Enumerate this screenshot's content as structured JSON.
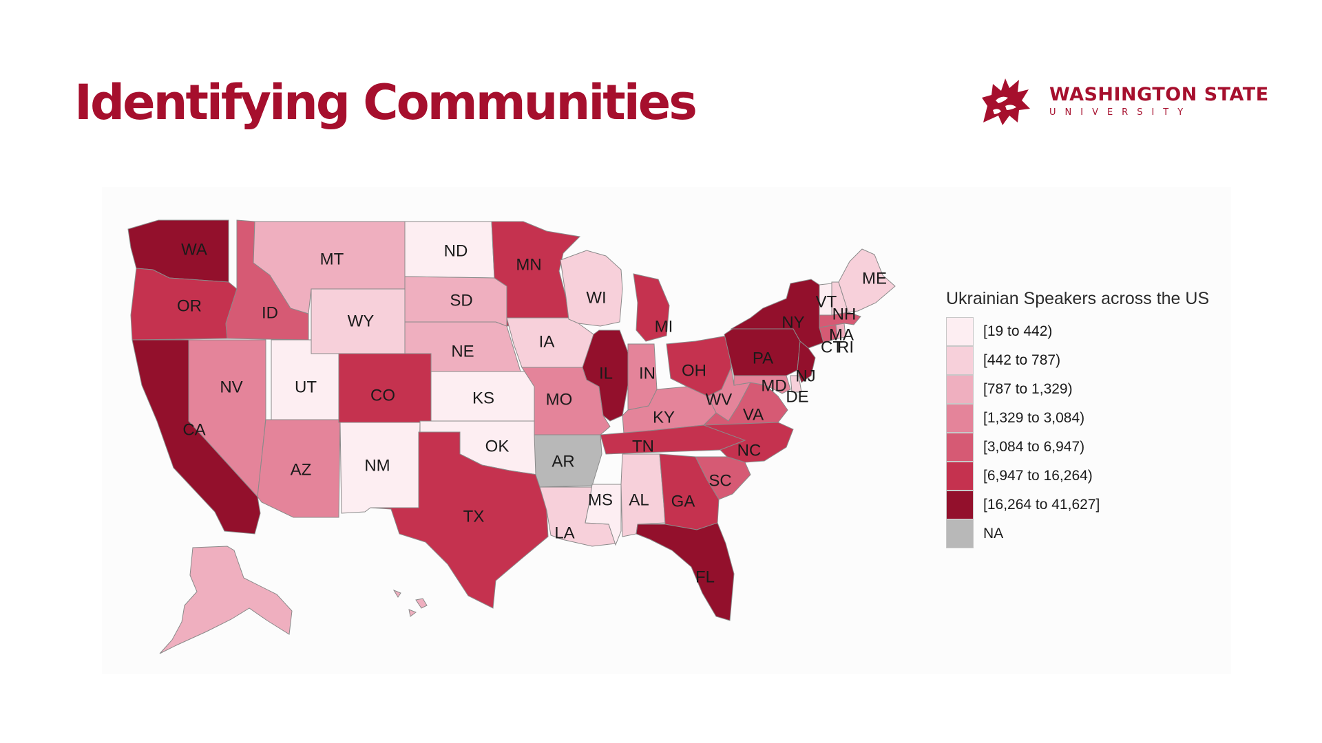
{
  "slide": {
    "title": "Identifying Communities"
  },
  "logo": {
    "line1": "WASHINGTON STATE",
    "line2": "UNIVERSITY",
    "color": "#a60f2d"
  },
  "legend": {
    "title": "Ukrainian Speakers across the US",
    "items": [
      {
        "label": "[19 to 442)",
        "color": "#fdeef2"
      },
      {
        "label": "[442 to 787)",
        "color": "#f7d0da"
      },
      {
        "label": "[787 to 1,329)",
        "color": "#efafbf"
      },
      {
        "label": "[1,329 to 3,084)",
        "color": "#e4849a"
      },
      {
        "label": "[3,084 to 6,947)",
        "color": "#d65a74"
      },
      {
        "label": "[6,947 to 16,264)",
        "color": "#c5324f"
      },
      {
        "label": "[16,264 to 41,627]",
        "color": "#93102c"
      },
      {
        "label": "NA",
        "color": "#b8b8b8"
      }
    ]
  },
  "states": [
    {
      "abbr": "WA",
      "bin": 6
    },
    {
      "abbr": "OR",
      "bin": 5
    },
    {
      "abbr": "CA",
      "bin": 6
    },
    {
      "abbr": "ID",
      "bin": 4
    },
    {
      "abbr": "NV",
      "bin": 3
    },
    {
      "abbr": "MT",
      "bin": 2
    },
    {
      "abbr": "WY",
      "bin": 1
    },
    {
      "abbr": "UT",
      "bin": 0
    },
    {
      "abbr": "AZ",
      "bin": 3
    },
    {
      "abbr": "CO",
      "bin": 5
    },
    {
      "abbr": "NM",
      "bin": 0
    },
    {
      "abbr": "ND",
      "bin": 0
    },
    {
      "abbr": "SD",
      "bin": 2
    },
    {
      "abbr": "NE",
      "bin": 2
    },
    {
      "abbr": "KS",
      "bin": 0
    },
    {
      "abbr": "OK",
      "bin": 0
    },
    {
      "abbr": "TX",
      "bin": 5
    },
    {
      "abbr": "MN",
      "bin": 5
    },
    {
      "abbr": "IA",
      "bin": 1
    },
    {
      "abbr": "MO",
      "bin": 3
    },
    {
      "abbr": "AR",
      "bin": 7
    },
    {
      "abbr": "LA",
      "bin": 1
    },
    {
      "abbr": "WI",
      "bin": 1
    },
    {
      "abbr": "IL",
      "bin": 6
    },
    {
      "abbr": "MS",
      "bin": 0
    },
    {
      "abbr": "MI",
      "bin": 5
    },
    {
      "abbr": "IN",
      "bin": 3
    },
    {
      "abbr": "KY",
      "bin": 3
    },
    {
      "abbr": "TN",
      "bin": 5
    },
    {
      "abbr": "AL",
      "bin": 1
    },
    {
      "abbr": "OH",
      "bin": 5
    },
    {
      "abbr": "WV",
      "bin": 3
    },
    {
      "abbr": "VA",
      "bin": 4
    },
    {
      "abbr": "NC",
      "bin": 5
    },
    {
      "abbr": "SC",
      "bin": 4
    },
    {
      "abbr": "GA",
      "bin": 5
    },
    {
      "abbr": "FL",
      "bin": 6
    },
    {
      "abbr": "PA",
      "bin": 6
    },
    {
      "abbr": "NY",
      "bin": 6
    },
    {
      "abbr": "NJ",
      "bin": 6
    },
    {
      "abbr": "MD",
      "bin": 3
    },
    {
      "abbr": "DE",
      "bin": 1
    },
    {
      "abbr": "CT",
      "bin": 4
    },
    {
      "abbr": "RI",
      "bin": 2
    },
    {
      "abbr": "MA",
      "bin": 4
    },
    {
      "abbr": "VT",
      "bin": 0
    },
    {
      "abbr": "NH",
      "bin": 1
    },
    {
      "abbr": "ME",
      "bin": 1
    },
    {
      "abbr": "AK",
      "bin": 2
    },
    {
      "abbr": "HI",
      "bin": 2
    }
  ]
}
